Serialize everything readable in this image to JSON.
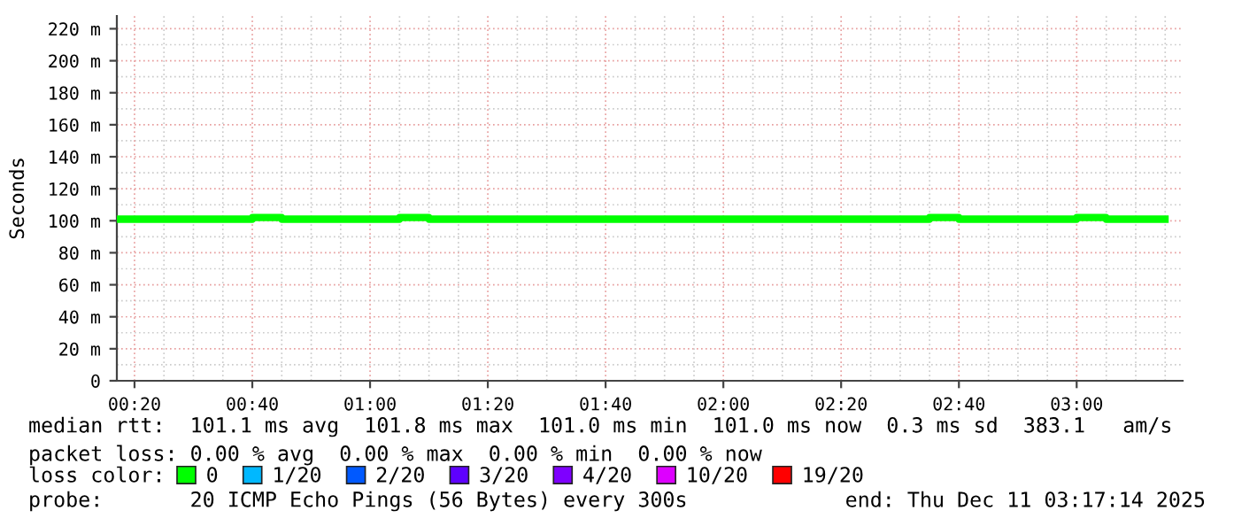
{
  "chart_data": {
    "type": "step",
    "ylabel": "Seconds",
    "x": [
      0.2833,
      0.3333,
      0.4167,
      0.5,
      0.5833,
      0.6667,
      0.75,
      0.8333,
      0.9167,
      1.0,
      1.0833,
      1.1667,
      1.25,
      1.3333,
      1.4167,
      1.5,
      1.5833,
      1.6667,
      1.75,
      1.8333,
      1.9167,
      2.0,
      2.0833,
      2.1667,
      2.25,
      2.3333,
      2.4167,
      2.5,
      2.5833,
      2.6667,
      2.75,
      2.8333,
      2.9167,
      3.0,
      3.0833,
      3.1667,
      3.25
    ],
    "series": [
      {
        "name": "0",
        "color": "#00ff00",
        "values": [
          101,
          101,
          101,
          101,
          101,
          102,
          101,
          101,
          101,
          101,
          102,
          101,
          101,
          101,
          101,
          101,
          101,
          101,
          101,
          101,
          101,
          101,
          101,
          101,
          101,
          101,
          101,
          101,
          102,
          101,
          101,
          101,
          101,
          102,
          101,
          101,
          101
        ]
      },
      {
        "name": "1/20",
        "color": "#00b8ff",
        "values": [
          null,
          null,
          null,
          null,
          null,
          null,
          null,
          null,
          null,
          null,
          null,
          null,
          null,
          null,
          null,
          null,
          null,
          null,
          null,
          null,
          null,
          null,
          null,
          null,
          null,
          null,
          null,
          null,
          null,
          null,
          null,
          null,
          null,
          null,
          null,
          null,
          null
        ]
      },
      {
        "name": "2/20",
        "color": "#0059ff",
        "values": [
          null,
          null,
          null,
          null,
          null,
          null,
          null,
          null,
          null,
          null,
          null,
          null,
          null,
          null,
          null,
          null,
          null,
          null,
          null,
          null,
          null,
          null,
          null,
          null,
          null,
          null,
          null,
          null,
          null,
          null,
          null,
          null,
          null,
          null,
          null,
          null,
          null
        ]
      },
      {
        "name": "3/20",
        "color": "#5e00ff",
        "values": [
          null,
          null,
          null,
          null,
          null,
          null,
          null,
          null,
          null,
          null,
          null,
          null,
          null,
          null,
          null,
          null,
          null,
          null,
          null,
          null,
          null,
          null,
          null,
          null,
          null,
          null,
          null,
          null,
          null,
          null,
          null,
          null,
          null,
          null,
          null,
          null,
          null
        ]
      },
      {
        "name": "4/20",
        "color": "#7e00ff",
        "values": [
          null,
          null,
          null,
          null,
          null,
          null,
          null,
          null,
          null,
          null,
          null,
          null,
          null,
          null,
          null,
          null,
          null,
          null,
          null,
          null,
          null,
          null,
          null,
          null,
          null,
          null,
          null,
          null,
          null,
          null,
          null,
          null,
          null,
          null,
          null,
          null,
          null
        ]
      },
      {
        "name": "10/20",
        "color": "#dd00ff",
        "values": [
          null,
          null,
          null,
          null,
          null,
          null,
          null,
          null,
          null,
          null,
          null,
          null,
          null,
          null,
          null,
          null,
          null,
          null,
          null,
          null,
          null,
          null,
          null,
          null,
          null,
          null,
          null,
          null,
          null,
          null,
          null,
          null,
          null,
          null,
          null,
          null,
          null
        ]
      },
      {
        "name": "19/20",
        "color": "#ff0000",
        "values": [
          null,
          null,
          null,
          null,
          null,
          null,
          null,
          null,
          null,
          null,
          null,
          null,
          null,
          null,
          null,
          null,
          null,
          null,
          null,
          null,
          null,
          null,
          null,
          null,
          null,
          null,
          null,
          null,
          null,
          null,
          null,
          null,
          null,
          null,
          null,
          null,
          null
        ]
      }
    ],
    "legend": "bottom",
    "legend_title": "loss color:",
    "xlim": [
      0.2833,
      3.3
    ],
    "ylim": [
      0,
      228
    ],
    "xticks": [
      {
        "value": 0.3333,
        "label": "00:20"
      },
      {
        "value": 0.6667,
        "label": "00:40"
      },
      {
        "value": 1.0,
        "label": "01:00"
      },
      {
        "value": 1.3333,
        "label": "01:20"
      },
      {
        "value": 1.6667,
        "label": "01:40"
      },
      {
        "value": 2.0,
        "label": "02:00"
      },
      {
        "value": 2.3333,
        "label": "02:20"
      },
      {
        "value": 2.6667,
        "label": "02:40"
      },
      {
        "value": 3.0,
        "label": "03:00"
      }
    ],
    "yticks": [
      0,
      {
        "value": 20,
        "label": "20 m"
      },
      {
        "value": 40,
        "label": "40 m"
      },
      {
        "value": 60,
        "label": "60 m"
      },
      {
        "value": 80,
        "label": "80 m"
      },
      {
        "value": 100,
        "label": "100 m"
      },
      {
        "value": 120,
        "label": "120 m"
      },
      {
        "value": 140,
        "label": "140 m"
      },
      {
        "value": 160,
        "label": "160 m"
      },
      {
        "value": 180,
        "label": "180 m"
      },
      {
        "value": 200,
        "label": "200 m"
      },
      {
        "value": 220,
        "label": "220 m"
      }
    ],
    "grid": true,
    "annotations": [
      "median rtt:  101.1 ms avg  101.8 ms max  101.0 ms min  101.0 ms now  0.3 ms sd  383.1   am/s",
      "packet loss: 0.00 % avg  0.00 % max  0.00 % min  0.00 % now",
      "probe:       20 ICMP Echo Pings (56 Bytes) every 300s",
      "end: Thu Dec 11 03:17:14 2025"
    ]
  }
}
